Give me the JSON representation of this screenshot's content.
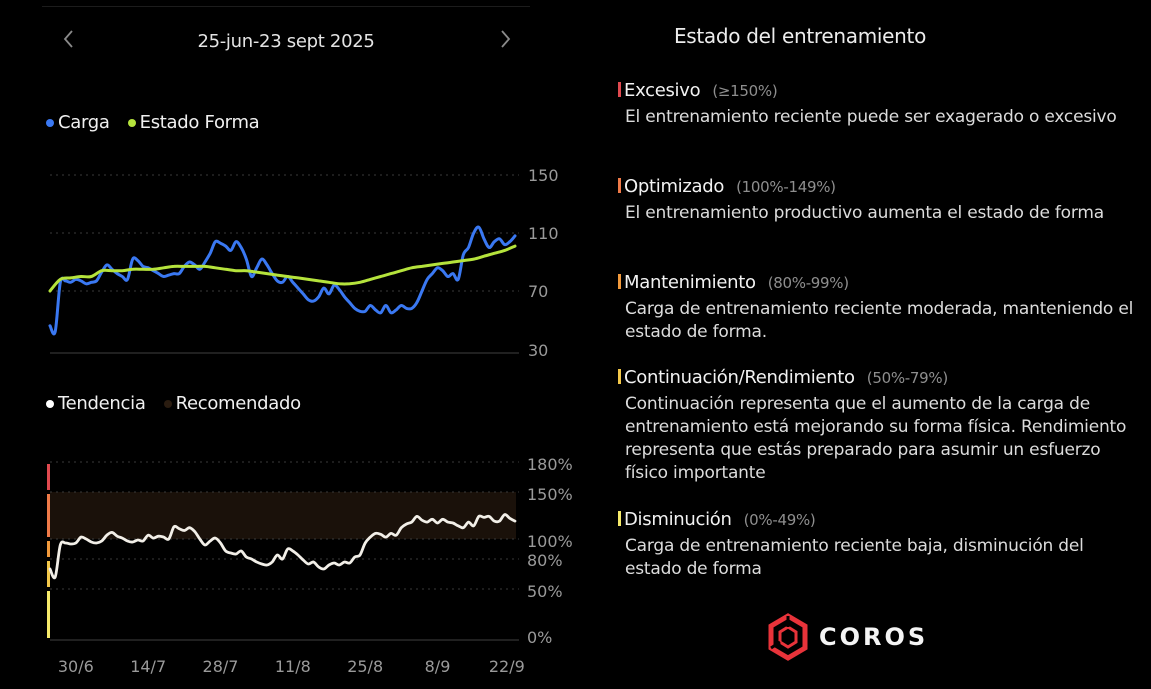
{
  "header": {
    "date_range": "25-jun-23 sept 2025",
    "prev_icon": "chevron-left-icon",
    "next_icon": "chevron-right-icon"
  },
  "load_chart": {
    "legend": [
      {
        "label": "Carga",
        "color": "#3a78f2"
      },
      {
        "label": "Estado Forma",
        "color": "#b5e33c"
      }
    ]
  },
  "trend_chart": {
    "legend": [
      {
        "label": "Tendencia",
        "color": "#ffffff"
      },
      {
        "label": "Recomendado",
        "color": "#2a1c10"
      }
    ]
  },
  "chart_data": [
    {
      "type": "line",
      "title": "Carga / Estado Forma",
      "xlabel": "",
      "ylabel": "",
      "ylim": [
        30,
        150
      ],
      "yticks": [
        150,
        110,
        70,
        30
      ],
      "grid": true,
      "legend_position": "top-left",
      "x_start": "25/6",
      "x_end": "23/9",
      "x_ticks": [
        "30/6",
        "14/7",
        "28/7",
        "11/8",
        "25/8",
        "8/9",
        "22/9"
      ],
      "x_tick_days": [
        5,
        19,
        33,
        47,
        61,
        75,
        89
      ],
      "series": [
        {
          "name": "Carga",
          "color": "#3a78f2",
          "days": [
            0,
            1,
            2,
            3,
            4,
            5,
            6,
            7,
            8,
            9,
            10,
            11,
            12,
            13,
            14,
            15,
            16,
            17,
            18,
            19,
            20,
            21,
            22,
            23,
            24,
            25,
            26,
            27,
            28,
            29,
            30,
            31,
            32,
            33,
            34,
            35,
            36,
            37,
            38,
            39,
            40,
            41,
            42,
            43,
            44,
            45,
            46,
            47,
            48,
            49,
            50,
            51,
            52,
            53,
            54,
            55,
            56,
            57,
            58,
            59,
            60,
            61,
            62,
            63,
            64,
            65,
            66,
            67,
            68,
            69,
            70,
            71,
            72,
            73,
            74,
            75,
            76,
            77,
            78,
            79,
            80,
            81,
            82,
            83,
            84,
            85,
            86,
            87,
            88,
            89,
            90
          ],
          "values": [
            46,
            42,
            76,
            77,
            76,
            78,
            77,
            75,
            76,
            77,
            83,
            88,
            85,
            82,
            80,
            78,
            92,
            91,
            87,
            86,
            84,
            82,
            80,
            81,
            82,
            82,
            87,
            90,
            88,
            85,
            90,
            96,
            104,
            103,
            101,
            98,
            104,
            100,
            92,
            80,
            86,
            92,
            88,
            82,
            77,
            76,
            80,
            76,
            72,
            68,
            64,
            63,
            66,
            72,
            68,
            74,
            71,
            66,
            62,
            58,
            56,
            56,
            60,
            57,
            55,
            60,
            55,
            57,
            60,
            58,
            58,
            62,
            70,
            78,
            82,
            86,
            84,
            80,
            82,
            78,
            95,
            100,
            110,
            114,
            106,
            100,
            104,
            106,
            102,
            104,
            108,
            100
          ]
        },
        {
          "name": "Estado Forma",
          "color": "#b5e33c",
          "days": [
            0,
            2,
            4,
            6,
            8,
            10,
            12,
            14,
            16,
            18,
            20,
            22,
            24,
            26,
            28,
            30,
            32,
            34,
            36,
            38,
            40,
            42,
            44,
            46,
            48,
            50,
            52,
            54,
            56,
            58,
            60,
            62,
            64,
            66,
            68,
            70,
            72,
            74,
            76,
            78,
            80,
            82,
            84,
            86,
            88,
            90
          ],
          "values": [
            70,
            78,
            79,
            80,
            80,
            84,
            84,
            84,
            85,
            85,
            85,
            86,
            87,
            87,
            87,
            87,
            86,
            85,
            84,
            84,
            83,
            82,
            81,
            80,
            79,
            78,
            77,
            76,
            75,
            75,
            76,
            78,
            80,
            82,
            84,
            86,
            87,
            88,
            89,
            90,
            91,
            92,
            94,
            96,
            98,
            101
          ]
        }
      ]
    },
    {
      "type": "line",
      "title": "Tendencia / Recomendado",
      "xlabel": "",
      "ylabel": "",
      "ylim": [
        0,
        180
      ],
      "yticks": [
        "180%",
        "150%",
        "100%",
        "80%",
        "50%",
        "0%"
      ],
      "ytick_values": [
        180,
        150,
        100,
        80,
        50,
        0
      ],
      "grid": true,
      "legend_position": "top-left",
      "recommended_band": [
        100,
        150
      ],
      "zones": [
        {
          "name": "Excesivo",
          "from": 150,
          "to": 180,
          "color": "#e0494f"
        },
        {
          "name": "Optimizado",
          "from": 100,
          "to": 150,
          "color": "#ef7a48"
        },
        {
          "name": "Mantenimiento",
          "from": 80,
          "to": 100,
          "color": "#f29a3c"
        },
        {
          "name": "Continuación/Rendimiento",
          "from": 50,
          "to": 80,
          "color": "#f3c84a"
        },
        {
          "name": "Disminución",
          "from": 0,
          "to": 50,
          "color": "#f6ea6a"
        }
      ],
      "x_ticks": [
        "30/6",
        "14/7",
        "28/7",
        "11/8",
        "25/8",
        "8/9",
        "22/9"
      ],
      "x_tick_days": [
        5,
        19,
        33,
        47,
        61,
        75,
        89
      ],
      "series": [
        {
          "name": "Tendencia",
          "color": "#f2efe8",
          "days": [
            0,
            1,
            2,
            3,
            4,
            5,
            6,
            7,
            8,
            9,
            10,
            11,
            12,
            13,
            14,
            15,
            16,
            17,
            18,
            19,
            20,
            21,
            22,
            23,
            24,
            25,
            26,
            27,
            28,
            29,
            30,
            31,
            32,
            33,
            34,
            35,
            36,
            37,
            38,
            39,
            40,
            41,
            42,
            43,
            44,
            45,
            46,
            47,
            48,
            49,
            50,
            51,
            52,
            53,
            54,
            55,
            56,
            57,
            58,
            59,
            60,
            61,
            62,
            63,
            64,
            65,
            66,
            67,
            68,
            69,
            70,
            71,
            72,
            73,
            74,
            75,
            76,
            77,
            78,
            79,
            80,
            81,
            82,
            83,
            84,
            85,
            86,
            87,
            88,
            89,
            90
          ],
          "values": [
            70,
            62,
            94,
            96,
            95,
            96,
            102,
            100,
            97,
            96,
            98,
            104,
            107,
            103,
            101,
            98,
            97,
            99,
            98,
            104,
            101,
            103,
            102,
            100,
            113,
            111,
            109,
            112,
            108,
            100,
            94,
            98,
            101,
            96,
            88,
            86,
            85,
            88,
            82,
            80,
            77,
            75,
            74,
            77,
            84,
            80,
            90,
            88,
            84,
            79,
            75,
            77,
            72,
            70,
            74,
            76,
            74,
            77,
            76,
            82,
            84,
            96,
            102,
            106,
            105,
            102,
            106,
            104,
            112,
            116,
            118,
            124,
            120,
            118,
            121,
            117,
            121,
            118,
            117,
            114,
            112,
            118,
            114,
            124,
            123,
            124,
            119,
            119,
            126,
            122,
            119
          ]
        }
      ]
    }
  ],
  "status_panel": {
    "title": "Estado del entrenamiento",
    "items": [
      {
        "name": "Excesivo",
        "range": "(≥150%)",
        "color": "#e0494f",
        "desc": "El entrenamiento reciente puede ser exagerado o excesivo"
      },
      {
        "name": "Optimizado",
        "range": "(100%-149%)",
        "color": "#ef7a48",
        "desc": "El entrenamiento productivo aumenta el estado de forma"
      },
      {
        "name": "Mantenimiento",
        "range": "(80%-99%)",
        "color": "#f29a3c",
        "desc": "Carga de entrenamiento reciente moderada, manteniendo el estado de forma."
      },
      {
        "name": "Continuación/Rendimiento",
        "range": "(50%-79%)",
        "color": "#f3c84a",
        "desc": "Continuación representa que el aumento de la carga de entrenamiento está mejorando su forma física. Rendimiento representa que estás preparado para asumir un esfuerzo físico importante"
      },
      {
        "name": "Disminución",
        "range": "(0%-49%)",
        "color": "#f6ea6a",
        "desc": "Carga de entrenamiento reciente baja, disminución del estado de forma"
      }
    ]
  },
  "brand": {
    "name": "COROS",
    "logo_icon": "coros-hexagon-logo-icon",
    "color": "#e8333a"
  }
}
